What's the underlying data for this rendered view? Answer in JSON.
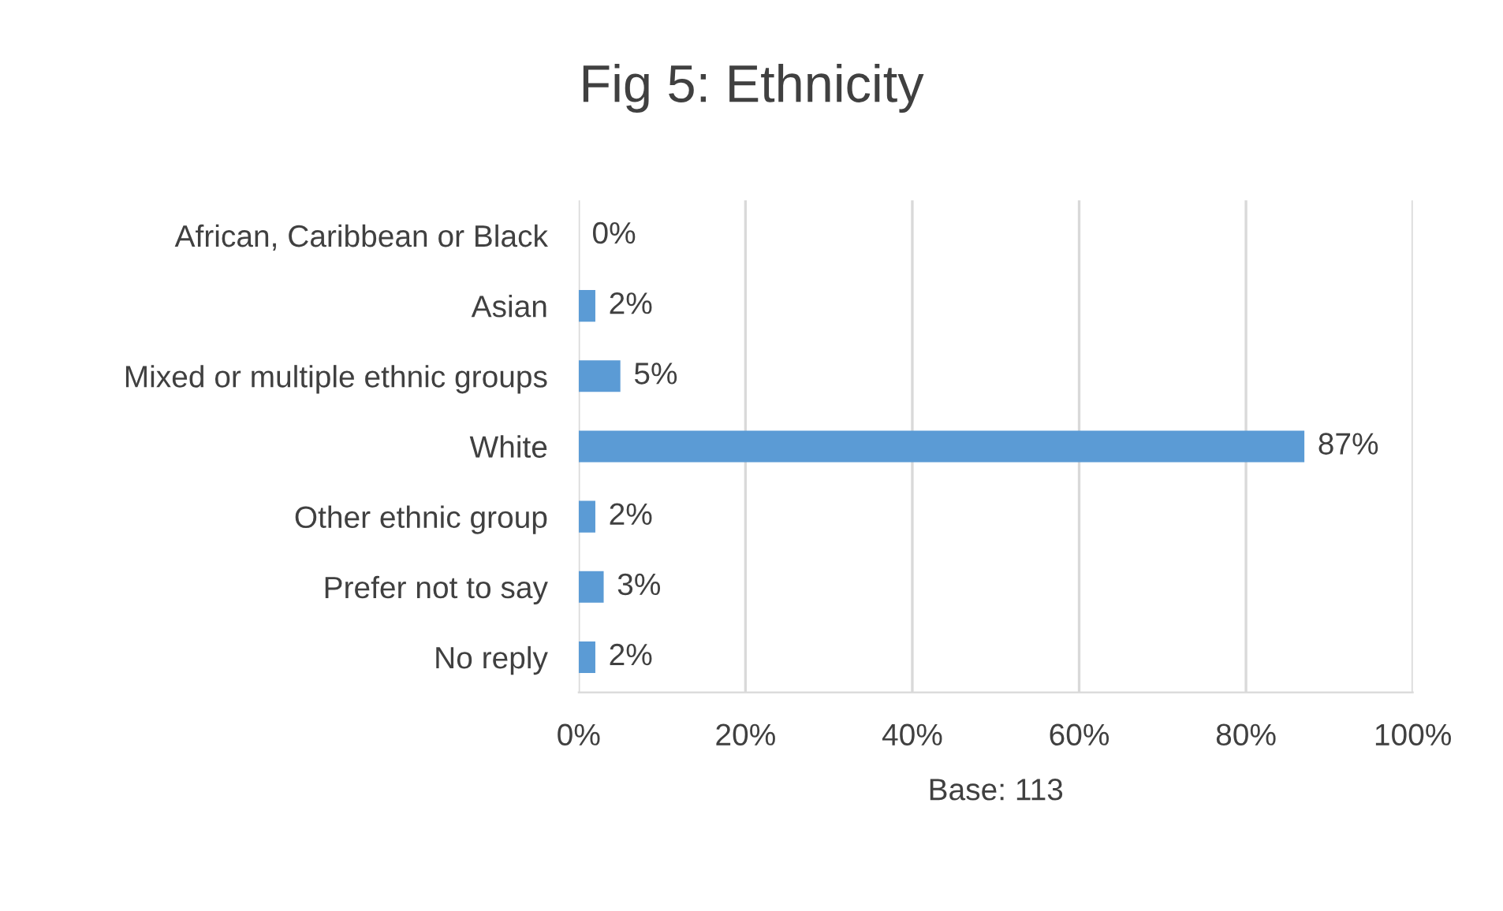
{
  "chart_data": {
    "type": "bar",
    "orientation": "horizontal",
    "title": "Fig 5: Ethnicity",
    "xlabel": "Base: 113",
    "categories": [
      "African, Caribbean or Black",
      "Asian",
      "Mixed or multiple ethnic groups",
      "White",
      "Other ethnic group",
      "Prefer not to say",
      "No reply"
    ],
    "values": [
      0,
      2,
      5,
      87,
      2,
      3,
      2
    ],
    "value_labels": [
      "0%",
      "2%",
      "5%",
      "87%",
      "2%",
      "3%",
      "2%"
    ],
    "color": "#5b9bd5",
    "xlim": [
      0,
      100
    ],
    "xticks": [
      {
        "value": 0,
        "label": "0%"
      },
      {
        "value": 20,
        "label": "20%"
      },
      {
        "value": 40,
        "label": "40%"
      },
      {
        "value": 60,
        "label": "60%"
      },
      {
        "value": 80,
        "label": "80%"
      },
      {
        "value": 100,
        "label": "100%"
      }
    ],
    "grid": "x",
    "legend": false
  }
}
